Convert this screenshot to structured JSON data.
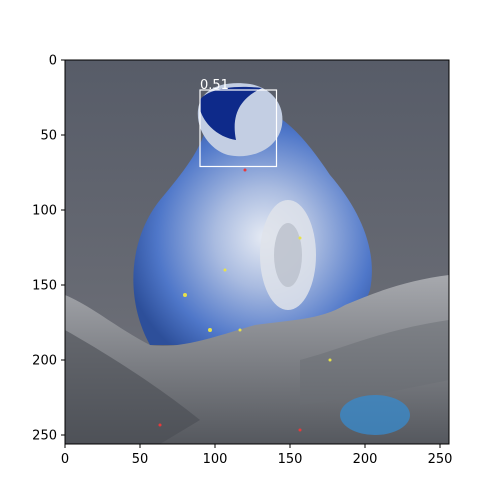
{
  "figure": {
    "image_alt": "Inverted-color image of an animal sitting on a rocky surface with a detection box over its head",
    "x_ticks": [
      "0",
      "50",
      "100",
      "150",
      "200",
      "250"
    ],
    "y_ticks": [
      "0",
      "50",
      "100",
      "150",
      "200",
      "250"
    ],
    "x_range": [
      0,
      256
    ],
    "y_range": [
      0,
      256
    ],
    "detection": {
      "score_label": "0.51",
      "box_image_coords": {
        "x0": 90,
        "y0": 20,
        "x1": 141,
        "y1": 71
      },
      "box_color": "#ffffff"
    }
  },
  "colors": {
    "background": "#ffffff",
    "axis": "#000000",
    "sky_top": "#5a5f6b",
    "sky_bottom": "#70737c",
    "fur_blue": "#3f66c2",
    "fur_light": "#cbd6ec",
    "rock": "#8d8f95"
  }
}
